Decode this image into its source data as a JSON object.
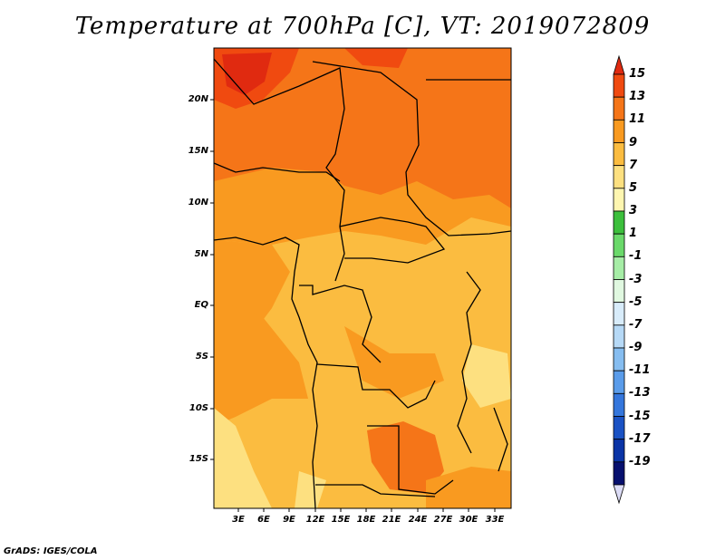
{
  "title": "Temperature at 700hPa [C], VT: 2019072809",
  "credit": "GrADS: IGES/COLA",
  "lat_labels": [
    "20N",
    "15N",
    "10N",
    "5N",
    "EQ",
    "5S",
    "10S",
    "15S"
  ],
  "lon_labels": [
    "3E",
    "6E",
    "9E",
    "12E",
    "15E",
    "18E",
    "21E",
    "24E",
    "27E",
    "30E",
    "33E"
  ],
  "colorbar": {
    "labels": [
      "15",
      "13",
      "11",
      "9",
      "7",
      "5",
      "3",
      "1",
      "-1",
      "-3",
      "-5",
      "-7",
      "-9",
      "-11",
      "-13",
      "-15",
      "-17",
      "-19"
    ],
    "colors": [
      "#e02a10",
      "#f04a10",
      "#f57518",
      "#f99a20",
      "#fbbc40",
      "#fde080",
      "#fef6b0",
      "#3cbf3c",
      "#6ad96a",
      "#a6eda6",
      "#e0f8e0",
      "#d8ecfa",
      "#b6d9f6",
      "#86bdf0",
      "#5a9cea",
      "#3476dc",
      "#1a52c4",
      "#0a34a6",
      "#06106e",
      "#dcdcf6"
    ]
  }
}
